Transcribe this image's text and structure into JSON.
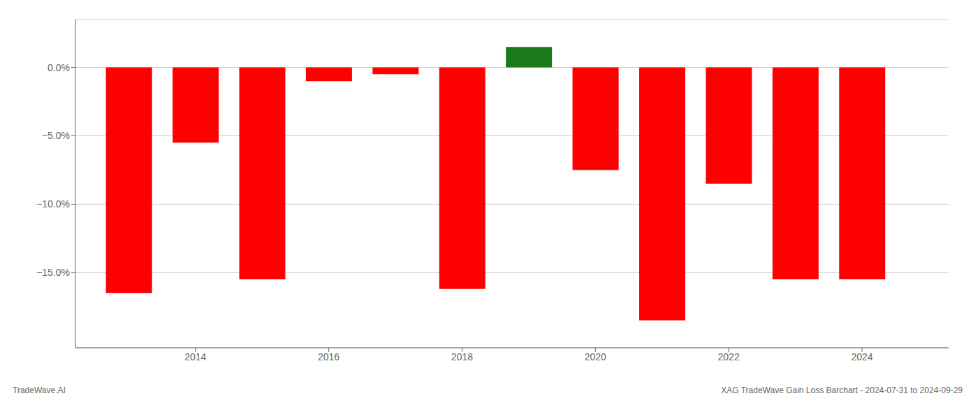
{
  "chart_data": {
    "type": "bar",
    "x": [
      2013,
      2014,
      2015,
      2016,
      2017,
      2018,
      2019,
      2020,
      2021,
      2022,
      2023,
      2024
    ],
    "values": [
      -16.5,
      -5.5,
      -15.5,
      -1.0,
      -0.5,
      -16.2,
      1.5,
      -7.5,
      -18.5,
      -8.5,
      -15.5,
      -15.5
    ],
    "colors": [
      "#ff0000",
      "#ff0000",
      "#ff0000",
      "#ff0000",
      "#ff0000",
      "#ff0000",
      "#1a7a1a",
      "#ff0000",
      "#ff0000",
      "#ff0000",
      "#ff0000",
      "#ff0000"
    ],
    "xlim": [
      2012.2,
      2025.3
    ],
    "xticks": [
      2014,
      2016,
      2018,
      2020,
      2022,
      2024
    ],
    "ylim": [
      -20.5,
      3.5
    ],
    "yticks": [
      {
        "value": 0.0,
        "label": "0.0%"
      },
      {
        "value": -5.0,
        "label": "−5.0%"
      },
      {
        "value": -10.0,
        "label": "−10.0%"
      },
      {
        "value": -15.0,
        "label": "−15.0%"
      }
    ],
    "grid": "y",
    "annotations": [
      "TradeWave.AI",
      "XAG TradeWave Gain Loss Barchart - 2024-07-31 to 2024-09-29"
    ]
  }
}
